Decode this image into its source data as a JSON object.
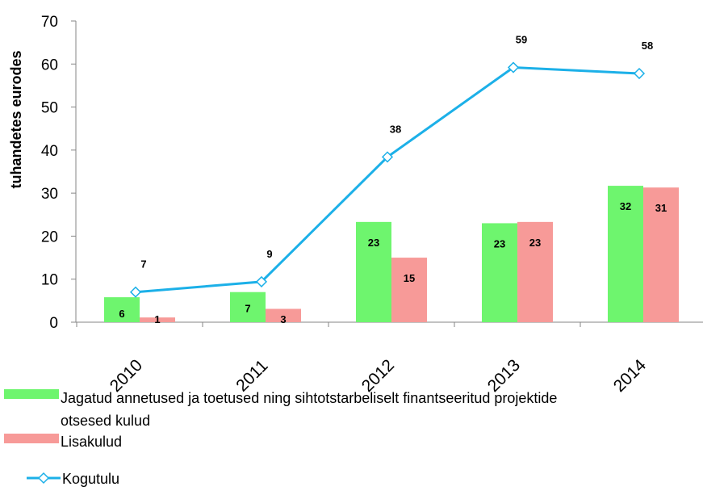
{
  "chart_data": {
    "type": "bar",
    "categories": [
      "2010",
      "2011",
      "2012",
      "2013",
      "2014"
    ],
    "ylabel": "tuhandetes eurodes",
    "xlabel": "",
    "ylim": [
      0,
      70
    ],
    "yticks": [
      0,
      10,
      20,
      30,
      40,
      50,
      60,
      70
    ],
    "grid": false,
    "legend_position": "bottom",
    "series": [
      {
        "name": "Jagatud annetused ja toetused ning sihtotstarbeliselt finantseeritud projektide otsesed kulud",
        "kind": "bar",
        "color": "#6ef56e",
        "values": [
          5.8,
          7.0,
          23.3,
          23.0,
          31.7
        ],
        "labels": [
          "6",
          "7",
          "23",
          "23",
          "32"
        ]
      },
      {
        "name": "Lisakulud",
        "kind": "bar",
        "color": "#f79a98",
        "values": [
          1.1,
          3.1,
          15.0,
          23.3,
          31.3
        ],
        "labels": [
          "1",
          "3",
          "15",
          "23",
          "31"
        ]
      },
      {
        "name": "Kogutulu",
        "kind": "line",
        "color": "#1cb0e8",
        "values": [
          7.0,
          9.4,
          38.4,
          59.2,
          57.8
        ],
        "labels": [
          "7",
          "9",
          "38",
          "59",
          "58"
        ]
      }
    ],
    "legend": {
      "line1": "Jagatud annetused ja toetused ning sihtotstarbeliselt finantseeritud projektide",
      "line2": "otsesed kulud",
      "lisakulud": "Lisakulud",
      "kogutulu": "Kogutulu"
    }
  }
}
